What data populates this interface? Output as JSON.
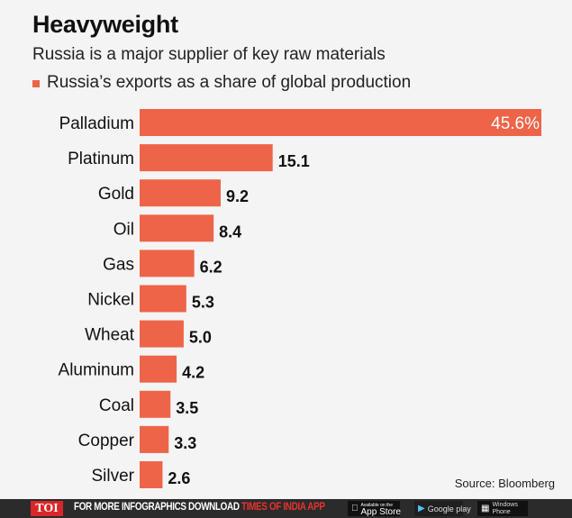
{
  "header": {
    "title": "Heavyweight",
    "subtitle": "Russia is a major supplier of key raw materials",
    "legend_label": "Russia’s exports as a share of global production"
  },
  "source": "Source: Bloomberg",
  "colors": {
    "bar": "#ee6448",
    "background": "#f4f4f5",
    "label": "#111111",
    "inside_label": "#ffffff"
  },
  "chart_data": {
    "type": "bar",
    "orientation": "horizontal",
    "title": "Heavyweight",
    "subtitle": "Russia is a major supplier of key raw materials",
    "series": [
      {
        "name": "Russia’s exports as a share of global production",
        "values": [
          45.6,
          15.1,
          9.2,
          8.4,
          6.2,
          5.3,
          5.0,
          4.2,
          3.5,
          3.3,
          2.6
        ]
      }
    ],
    "categories": [
      "Palladium",
      "Platinum",
      "Gold",
      "Oil",
      "Gas",
      "Nickel",
      "Wheat",
      "Aluminum",
      "Coal",
      "Copper",
      "Silver"
    ],
    "values": [
      45.6,
      15.1,
      9.2,
      8.4,
      6.2,
      5.3,
      5.0,
      4.2,
      3.5,
      3.3,
      2.6
    ],
    "value_labels": [
      "45.6%",
      "15.1",
      "9.2",
      "8.4",
      "6.2",
      "5.3",
      "5.0",
      "4.2",
      "3.5",
      "3.3",
      "2.6"
    ],
    "xlabel": "",
    "ylabel": "",
    "xlim": [
      0,
      45.6
    ],
    "grid": false,
    "legend": "top-left"
  },
  "footer": {
    "logo": "TOI",
    "promo_white": "FOR MORE  INFOGRAPHICS DOWNLOAD ",
    "promo_red": "TIMES OF INDIA  APP",
    "badges": [
      {
        "icon": "apple-icon",
        "small": "Available on the",
        "label": "App Store"
      },
      {
        "icon": "google-play-icon",
        "small": "",
        "label": "Google play"
      },
      {
        "icon": "windows-icon",
        "small": "Windows",
        "label": "Phone"
      }
    ]
  }
}
